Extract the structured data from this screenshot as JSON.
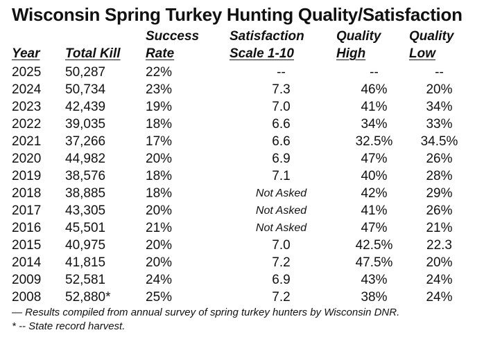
{
  "title": "Wisconsin Spring Turkey Hunting Quality/Satisfaction",
  "headers": {
    "year": "Year",
    "total_kill": "Total Kill",
    "success_line1": "Success",
    "success_line2": "Rate",
    "satisfaction_line1": "Satisfaction",
    "satisfaction_line2": "Scale 1-10",
    "quality_high_line1": "Quality",
    "quality_high_line2": "High",
    "quality_low_line1": "Quality",
    "quality_low_line2": "Low"
  },
  "rows": [
    {
      "year": "2025",
      "kill": "50,287",
      "rate": "22%",
      "sat": "--",
      "high": "--",
      "low": "--"
    },
    {
      "year": "2024",
      "kill": "50,734",
      "rate": "23%",
      "sat": "7.3",
      "high": "46%",
      "low": "20%"
    },
    {
      "year": "2023",
      "kill": "42,439",
      "rate": "19%",
      "sat": "7.0",
      "high": "41%",
      "low": "34%"
    },
    {
      "year": "2022",
      "kill": "39,035",
      "rate": "18%",
      "sat": "6.6",
      "high": "34%",
      "low": "33%"
    },
    {
      "year": "2021",
      "kill": "37,266",
      "rate": "17%",
      "sat": "6.6",
      "high": "32.5%",
      "low": "34.5%"
    },
    {
      "year": "2020",
      "kill": "44,982",
      "rate": "20%",
      "sat": "6.9",
      "high": "47%",
      "low": "26%"
    },
    {
      "year": "2019",
      "kill": "38,576",
      "rate": "18%",
      "sat": "7.1",
      "high": "40%",
      "low": "28%"
    },
    {
      "year": "2018",
      "kill": "38,885",
      "rate": "18%",
      "sat": "Not Asked",
      "high": "42%",
      "low": "29%"
    },
    {
      "year": "2017",
      "kill": "43,305",
      "rate": "20%",
      "sat": "Not Asked",
      "high": "41%",
      "low": "26%"
    },
    {
      "year": "2016",
      "kill": "45,501",
      "rate": "21%",
      "sat": "Not Asked",
      "high": "47%",
      "low": "21%"
    },
    {
      "year": "2015",
      "kill": "40,975",
      "rate": "20%",
      "sat": "7.0",
      "high": "42.5%",
      "low": "22.3"
    },
    {
      "year": "2014",
      "kill": "41,815",
      "rate": "20%",
      "sat": "7.2",
      "high": "47.5%",
      "low": "20%"
    },
    {
      "year": "2009",
      "kill": "52,581",
      "rate": "24%",
      "sat": "6.9",
      "high": "43%",
      "low": "24%"
    },
    {
      "year": "2008",
      "kill": "52,880*",
      "rate": "25%",
      "sat": "7.2",
      "high": "38%",
      "low": "24%"
    }
  ],
  "footnotes": {
    "source": "— Results compiled from annual survey of spring turkey hunters by Wisconsin DNR.",
    "record": "* -- State record harvest."
  }
}
